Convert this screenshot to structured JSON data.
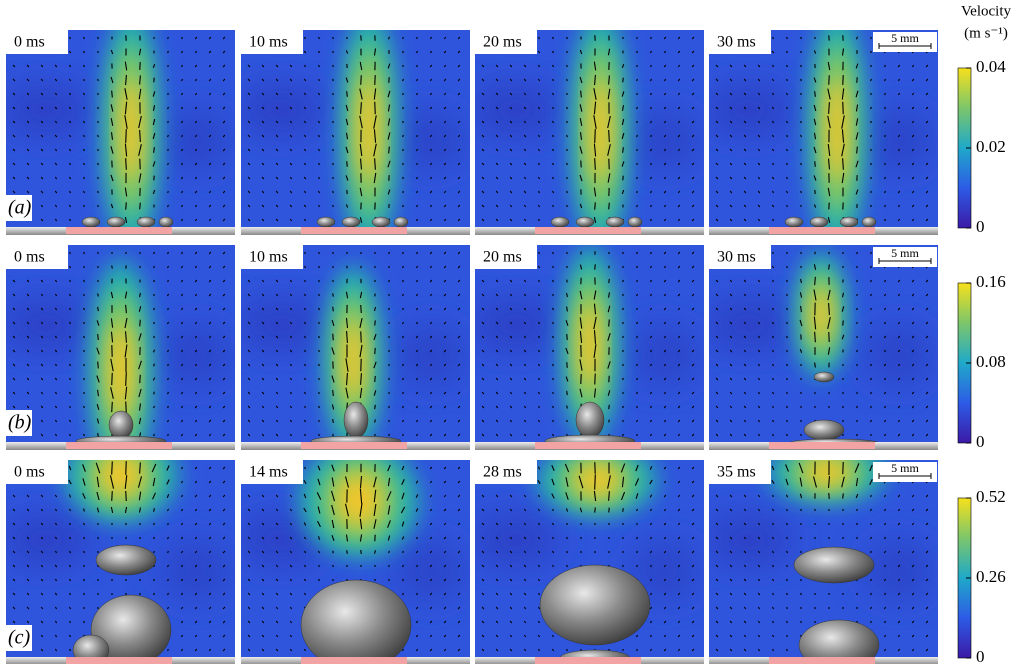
{
  "header": {
    "title": "Velocity",
    "unit": "(m s⁻¹)"
  },
  "rows": [
    {
      "label": "(a)",
      "times": [
        "0 ms",
        "10 ms",
        "20 ms",
        "30 ms"
      ],
      "scale_bar": "5 mm",
      "colorbar_ticks": [
        0,
        0.02,
        0.04
      ]
    },
    {
      "label": "(b)",
      "times": [
        "0 ms",
        "10 ms",
        "20 ms",
        "30 ms"
      ],
      "scale_bar": "5 mm",
      "colorbar_ticks": [
        0,
        0.08,
        0.16
      ]
    },
    {
      "label": "(c)",
      "times": [
        "0 ms",
        "14 ms",
        "28 ms",
        "35 ms"
      ],
      "scale_bar": "5 mm",
      "colorbar_ticks": [
        0,
        0.26,
        0.52
      ]
    }
  ]
}
